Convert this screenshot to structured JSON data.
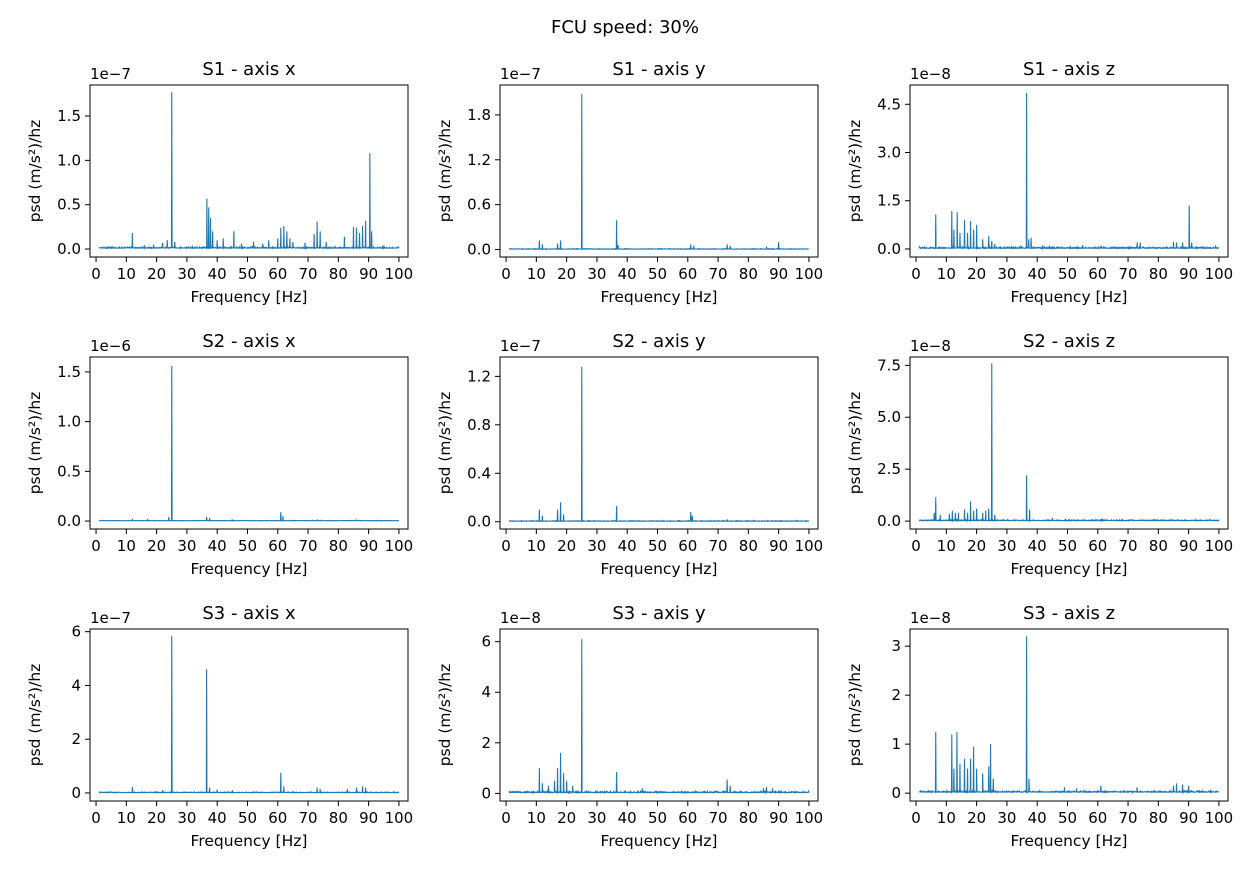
{
  "figure": {
    "suptitle": "FCU speed: 30%"
  },
  "colors": {
    "series": "#1f77b4",
    "axes": "#000000",
    "background": "#ffffff"
  },
  "chart_data": [
    {
      "type": "line",
      "title": "S1 - axis x",
      "xlabel": "Frequency [Hz]",
      "ylabel": "psd (m/s²)/hz",
      "offset": "1e−7",
      "xlim": [
        -2,
        103
      ],
      "ylim": [
        -0.09,
        1.85
      ],
      "xticks": [
        0,
        10,
        20,
        30,
        40,
        50,
        60,
        70,
        80,
        90,
        100
      ],
      "yticks": [
        0.0,
        0.5,
        1.0,
        1.5
      ],
      "ytick_labels": [
        "0.0",
        "0.5",
        "1.0",
        "1.5"
      ],
      "baseline": 0.01,
      "noise": 0.015,
      "peaks": [
        [
          12,
          0.18
        ],
        [
          16,
          0.04
        ],
        [
          19,
          0.05
        ],
        [
          22,
          0.07
        ],
        [
          23.5,
          0.1
        ],
        [
          25,
          1.77
        ],
        [
          26,
          0.08
        ],
        [
          36.6,
          0.57
        ],
        [
          37.2,
          0.47
        ],
        [
          37.8,
          0.35
        ],
        [
          38.5,
          0.2
        ],
        [
          40,
          0.1
        ],
        [
          42,
          0.12
        ],
        [
          45.5,
          0.2
        ],
        [
          48,
          0.06
        ],
        [
          52,
          0.08
        ],
        [
          55,
          0.06
        ],
        [
          57,
          0.1
        ],
        [
          60,
          0.12
        ],
        [
          61,
          0.24
        ],
        [
          62,
          0.26
        ],
        [
          63,
          0.2
        ],
        [
          64,
          0.12
        ],
        [
          65,
          0.08
        ],
        [
          69,
          0.07
        ],
        [
          72,
          0.17
        ],
        [
          73,
          0.31
        ],
        [
          74,
          0.2
        ],
        [
          76,
          0.08
        ],
        [
          82,
          0.14
        ],
        [
          85,
          0.25
        ],
        [
          86,
          0.24
        ],
        [
          87,
          0.18
        ],
        [
          88,
          0.26
        ],
        [
          89,
          0.32
        ],
        [
          90.4,
          1.08
        ],
        [
          91,
          0.2
        ],
        [
          95,
          0.04
        ],
        [
          100,
          0.03
        ]
      ]
    },
    {
      "type": "line",
      "title": "S1 - axis y",
      "xlabel": "Frequency [Hz]",
      "ylabel": "psd (m/s²)/hz",
      "offset": "1e−7",
      "xlim": [
        -2,
        103
      ],
      "ylim": [
        -0.1,
        2.2
      ],
      "xticks": [
        0,
        10,
        20,
        30,
        40,
        50,
        60,
        70,
        80,
        90,
        100
      ],
      "yticks": [
        0.0,
        0.6,
        1.2,
        1.8
      ],
      "ytick_labels": [
        "0.0",
        "0.6",
        "1.2",
        "1.8"
      ],
      "baseline": 0.005,
      "noise": 0.008,
      "peaks": [
        [
          11,
          0.12
        ],
        [
          12,
          0.07
        ],
        [
          17,
          0.08
        ],
        [
          18,
          0.12
        ],
        [
          25,
          2.08
        ],
        [
          36.5,
          0.39
        ],
        [
          37,
          0.06
        ],
        [
          61,
          0.07
        ],
        [
          62,
          0.05
        ],
        [
          73,
          0.07
        ],
        [
          74,
          0.05
        ],
        [
          86,
          0.04
        ],
        [
          90,
          0.1
        ]
      ]
    },
    {
      "type": "line",
      "title": "S1 - axis z",
      "xlabel": "Frequency [Hz]",
      "ylabel": "psd (m/s²)/hz",
      "offset": "1e−8",
      "xlim": [
        -2,
        103
      ],
      "ylim": [
        -0.25,
        5.1
      ],
      "xticks": [
        0,
        10,
        20,
        30,
        40,
        50,
        60,
        70,
        80,
        90,
        100
      ],
      "yticks": [
        0.0,
        1.5,
        3.0,
        4.5
      ],
      "ytick_labels": [
        "0.0",
        "1.5",
        "3.0",
        "4.5"
      ],
      "baseline": 0.02,
      "noise": 0.05,
      "peaks": [
        [
          6.5,
          1.08
        ],
        [
          11.8,
          1.18
        ],
        [
          12.5,
          0.6
        ],
        [
          13.6,
          1.15
        ],
        [
          14.5,
          0.5
        ],
        [
          16,
          0.9
        ],
        [
          17,
          0.5
        ],
        [
          18,
          0.87
        ],
        [
          19,
          0.6
        ],
        [
          20,
          0.75
        ],
        [
          22,
          0.3
        ],
        [
          24,
          0.4
        ],
        [
          25,
          0.25
        ],
        [
          26,
          0.15
        ],
        [
          36.5,
          4.85
        ],
        [
          37.2,
          0.3
        ],
        [
          38,
          0.35
        ],
        [
          44,
          0.1
        ],
        [
          55,
          0.12
        ],
        [
          61,
          0.1
        ],
        [
          73,
          0.2
        ],
        [
          74,
          0.2
        ],
        [
          85,
          0.22
        ],
        [
          86,
          0.2
        ],
        [
          88,
          0.2
        ],
        [
          90.2,
          1.35
        ],
        [
          91,
          0.2
        ]
      ]
    },
    {
      "type": "line",
      "title": "S2 - axis x",
      "xlabel": "Frequency [Hz]",
      "ylabel": "psd (m/s²)/hz",
      "offset": "1e−6",
      "xlim": [
        -2,
        103
      ],
      "ylim": [
        -0.08,
        1.65
      ],
      "xticks": [
        0,
        10,
        20,
        30,
        40,
        50,
        60,
        70,
        80,
        90,
        100
      ],
      "yticks": [
        0.0,
        0.5,
        1.0,
        1.5
      ],
      "ytick_labels": [
        "0.0",
        "0.5",
        "1.0",
        "1.5"
      ],
      "baseline": 0.003,
      "noise": 0.004,
      "peaks": [
        [
          12,
          0.02
        ],
        [
          17,
          0.02
        ],
        [
          24,
          0.04
        ],
        [
          25,
          1.56
        ],
        [
          36.5,
          0.04
        ],
        [
          37.5,
          0.03
        ],
        [
          45,
          0.015
        ],
        [
          61,
          0.09
        ],
        [
          61.7,
          0.05
        ],
        [
          73,
          0.01
        ],
        [
          86,
          0.01
        ]
      ]
    },
    {
      "type": "line",
      "title": "S2 - axis y",
      "xlabel": "Frequency [Hz]",
      "ylabel": "psd (m/s²)/hz",
      "offset": "1e−7",
      "xlim": [
        -2,
        103
      ],
      "ylim": [
        -0.06,
        1.36
      ],
      "xticks": [
        0,
        10,
        20,
        30,
        40,
        50,
        60,
        70,
        80,
        90,
        100
      ],
      "yticks": [
        0.0,
        0.4,
        0.8,
        1.2
      ],
      "ytick_labels": [
        "0.0",
        "0.4",
        "0.8",
        "1.2"
      ],
      "baseline": 0.004,
      "noise": 0.006,
      "peaks": [
        [
          11,
          0.1
        ],
        [
          12,
          0.05
        ],
        [
          17,
          0.1
        ],
        [
          18,
          0.16
        ],
        [
          19,
          0.06
        ],
        [
          25,
          1.28
        ],
        [
          36.5,
          0.13
        ],
        [
          61,
          0.08
        ],
        [
          61.5,
          0.05
        ],
        [
          73,
          0.02
        ]
      ]
    },
    {
      "type": "line",
      "title": "S2 - axis z",
      "xlabel": "Frequency [Hz]",
      "ylabel": "psd (m/s²)/hz",
      "offset": "1e−8",
      "xlim": [
        -2,
        103
      ],
      "ylim": [
        -0.38,
        7.9
      ],
      "xticks": [
        0,
        10,
        20,
        30,
        40,
        50,
        60,
        70,
        80,
        90,
        100
      ],
      "yticks": [
        0.0,
        2.5,
        5.0,
        7.5
      ],
      "ytick_labels": [
        "0.0",
        "2.5",
        "5.0",
        "7.5"
      ],
      "baseline": 0.02,
      "noise": 0.05,
      "peaks": [
        [
          6,
          0.4
        ],
        [
          6.5,
          1.15
        ],
        [
          8,
          0.3
        ],
        [
          11,
          0.35
        ],
        [
          12,
          0.5
        ],
        [
          13,
          0.4
        ],
        [
          14,
          0.4
        ],
        [
          16,
          0.55
        ],
        [
          17,
          0.4
        ],
        [
          18,
          0.95
        ],
        [
          19,
          0.5
        ],
        [
          20,
          0.6
        ],
        [
          22,
          0.4
        ],
        [
          23,
          0.5
        ],
        [
          24,
          0.6
        ],
        [
          25,
          7.6
        ],
        [
          26,
          0.3
        ],
        [
          36.5,
          2.2
        ],
        [
          37.5,
          0.55
        ],
        [
          45,
          0.15
        ],
        [
          61,
          0.1
        ]
      ]
    },
    {
      "type": "line",
      "title": "S3 - axis x",
      "xlabel": "Frequency [Hz]",
      "ylabel": "psd (m/s²)/hz",
      "offset": "1e−7",
      "xlim": [
        -2,
        103
      ],
      "ylim": [
        -0.3,
        6.1
      ],
      "xticks": [
        0,
        10,
        20,
        30,
        40,
        50,
        60,
        70,
        80,
        90,
        100
      ],
      "yticks": [
        0,
        2,
        4,
        6
      ],
      "ytick_labels": [
        "0",
        "2",
        "4",
        "6"
      ],
      "baseline": 0.01,
      "noise": 0.03,
      "peaks": [
        [
          12,
          0.22
        ],
        [
          22,
          0.1
        ],
        [
          25,
          5.85
        ],
        [
          36.5,
          4.6
        ],
        [
          37.5,
          0.2
        ],
        [
          40,
          0.12
        ],
        [
          45,
          0.1
        ],
        [
          61,
          0.75
        ],
        [
          62,
          0.25
        ],
        [
          73,
          0.2
        ],
        [
          74,
          0.15
        ],
        [
          83,
          0.15
        ],
        [
          86,
          0.2
        ],
        [
          88,
          0.25
        ],
        [
          89,
          0.2
        ]
      ]
    },
    {
      "type": "line",
      "title": "S3 - axis y",
      "xlabel": "Frequency [Hz]",
      "ylabel": "psd (m/s²)/hz",
      "offset": "1e−8",
      "xlim": [
        -2,
        103
      ],
      "ylim": [
        -0.3,
        6.5
      ],
      "xticks": [
        0,
        10,
        20,
        30,
        40,
        50,
        60,
        70,
        80,
        90,
        100
      ],
      "yticks": [
        0,
        2,
        4,
        6
      ],
      "ytick_labels": [
        "0",
        "2",
        "4",
        "6"
      ],
      "baseline": 0.03,
      "noise": 0.06,
      "peaks": [
        [
          11,
          1.0
        ],
        [
          12,
          0.4
        ],
        [
          14,
          0.3
        ],
        [
          16,
          0.5
        ],
        [
          17,
          1.0
        ],
        [
          18,
          1.6
        ],
        [
          19,
          0.8
        ],
        [
          20,
          0.5
        ],
        [
          22,
          0.3
        ],
        [
          25,
          6.1
        ],
        [
          36.5,
          0.85
        ],
        [
          45,
          0.2
        ],
        [
          73,
          0.55
        ],
        [
          74,
          0.3
        ],
        [
          85,
          0.2
        ],
        [
          86,
          0.25
        ],
        [
          88,
          0.2
        ]
      ]
    },
    {
      "type": "line",
      "title": "S3 - axis z",
      "xlabel": "Frequency [Hz]",
      "ylabel": "psd (m/s²)/hz",
      "offset": "1e−8",
      "xlim": [
        -2,
        103
      ],
      "ylim": [
        -0.16,
        3.35
      ],
      "xticks": [
        0,
        10,
        20,
        30,
        40,
        50,
        60,
        70,
        80,
        90,
        100
      ],
      "yticks": [
        0,
        1,
        2,
        3
      ],
      "ytick_labels": [
        "0",
        "1",
        "2",
        "3"
      ],
      "baseline": 0.02,
      "noise": 0.03,
      "peaks": [
        [
          6.5,
          1.25
        ],
        [
          11.8,
          1.2
        ],
        [
          12.5,
          0.5
        ],
        [
          13.5,
          1.25
        ],
        [
          14.5,
          0.6
        ],
        [
          16,
          0.7
        ],
        [
          17,
          0.5
        ],
        [
          18,
          0.7
        ],
        [
          19,
          0.95
        ],
        [
          20,
          0.5
        ],
        [
          22,
          0.4
        ],
        [
          24,
          0.55
        ],
        [
          24.6,
          1.0
        ],
        [
          25.5,
          0.3
        ],
        [
          36.5,
          3.2
        ],
        [
          37.3,
          0.3
        ],
        [
          49,
          0.12
        ],
        [
          53,
          0.1
        ],
        [
          61,
          0.15
        ],
        [
          73,
          0.12
        ],
        [
          85,
          0.15
        ],
        [
          86,
          0.2
        ],
        [
          88,
          0.18
        ],
        [
          90,
          0.15
        ]
      ]
    }
  ]
}
